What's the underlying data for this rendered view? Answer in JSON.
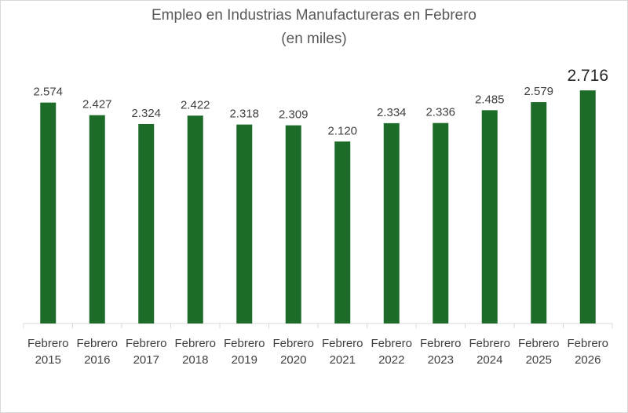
{
  "chart_data": {
    "type": "bar",
    "title": "Empleo en Industrias Manufactureras en Febrero",
    "subtitle": "(en miles)",
    "categories": [
      "Febrero 2015",
      "Febrero 2016",
      "Febrero 2017",
      "Febrero 2018",
      "Febrero 2019",
      "Febrero 2020",
      "Febrero 2021",
      "Febrero 2022",
      "Febrero 2023",
      "Febrero 2024",
      "Febrero 2025",
      "Febrero 2026"
    ],
    "category_lines": [
      [
        "Febrero",
        "2015"
      ],
      [
        "Febrero",
        "2016"
      ],
      [
        "Febrero",
        "2017"
      ],
      [
        "Febrero",
        "2018"
      ],
      [
        "Febrero",
        "2019"
      ],
      [
        "Febrero",
        "2020"
      ],
      [
        "Febrero",
        "2021"
      ],
      [
        "Febrero",
        "2022"
      ],
      [
        "Febrero",
        "2023"
      ],
      [
        "Febrero",
        "2024"
      ],
      [
        "Febrero",
        "2025"
      ],
      [
        "Febrero",
        "2026"
      ]
    ],
    "values": [
      2574,
      2427,
      2324,
      2422,
      2318,
      2309,
      2120,
      2334,
      2336,
      2485,
      2579,
      2716
    ],
    "labels": [
      "2.574",
      "2.427",
      "2.324",
      "2.422",
      "2.318",
      "2.309",
      "2.120",
      "2.334",
      "2.336",
      "2.485",
      "2.579",
      "2.716"
    ],
    "highlight_index": 11,
    "xlabel": "",
    "ylabel": "",
    "ylim": [
      0,
      2900
    ],
    "grid": false,
    "legend": "none",
    "bar_color": "#1d6b28"
  }
}
